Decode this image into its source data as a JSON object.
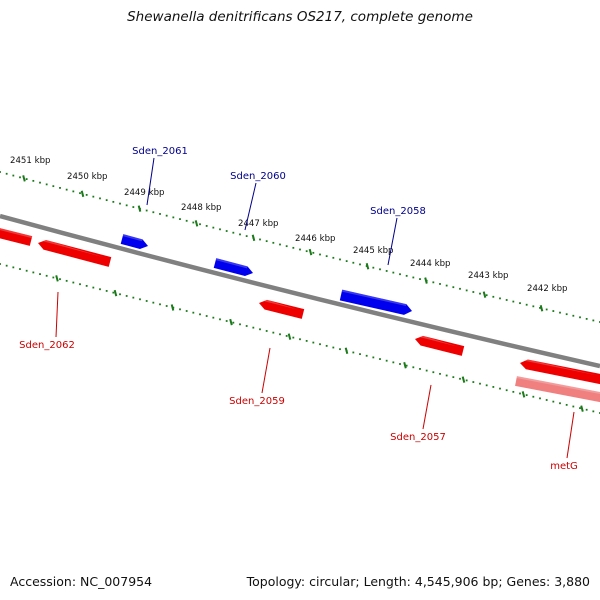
{
  "title": "Shewanella denitrificans OS217, complete genome",
  "footer": {
    "accession": "Accession: NC_007954",
    "summary": "Topology: circular; Length: 4,545,906 bp; Genes: 3,880"
  },
  "colors": {
    "backbone": "#808080",
    "ticks": "#1a7a1a",
    "forward_gene": "#0000ee",
    "reverse_gene": "#ee0000",
    "pseudo_gene": "#f08080",
    "forward_label": "#00008b",
    "reverse_label": "#cc0000"
  },
  "scale_labels": [
    "2451 kbp",
    "2450 kbp",
    "2449 kbp",
    "2448 kbp",
    "2447 kbp",
    "2446 kbp",
    "2445 kbp",
    "2444 kbp",
    "2443 kbp",
    "2442 kbp"
  ],
  "genes": [
    {
      "name": "Sden_2061",
      "strand": "forward"
    },
    {
      "name": "Sden_2060",
      "strand": "forward"
    },
    {
      "name": "Sden_2058",
      "strand": "forward"
    },
    {
      "name": "Sden_2062",
      "strand": "reverse"
    },
    {
      "name": "Sden_2059",
      "strand": "reverse"
    },
    {
      "name": "Sden_2057",
      "strand": "reverse"
    },
    {
      "name": "metG",
      "strand": "reverse"
    }
  ]
}
